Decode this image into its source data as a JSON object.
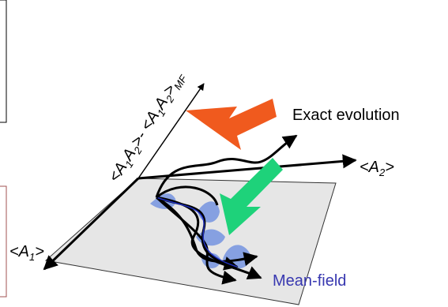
{
  "labels": {
    "correlation_axis": [
      "<A",
      "1",
      "A",
      "2",
      ">- <A",
      "1",
      "A",
      "2",
      ">",
      "MF"
    ],
    "exact": "Exact evolution",
    "a2": [
      "<A",
      "2",
      ">"
    ],
    "a1": [
      "<A",
      "1",
      ">"
    ],
    "mean_field": "Mean-field"
  }
}
